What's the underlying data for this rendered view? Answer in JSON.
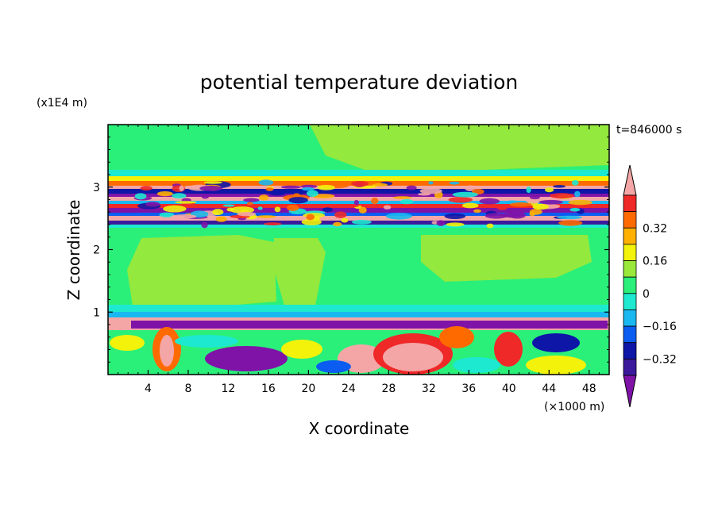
{
  "chart_data": {
    "type": "heatmap",
    "title": "potential temperature deviation",
    "xlabel": "X coordinate",
    "ylabel": "Z coordinate",
    "x_unit": "(×1000 m)",
    "y_unit": "(x1E4 m)",
    "time_label": "t=846000 s",
    "xlim": [
      0,
      50
    ],
    "ylim": [
      0,
      4
    ],
    "x_ticks": [
      "4",
      "8",
      "12",
      "16",
      "20",
      "24",
      "28",
      "32",
      "36",
      "40",
      "44",
      "48"
    ],
    "y_ticks": [
      "1",
      "2",
      "3"
    ],
    "colorbar": {
      "labels": [
        "0.32",
        "0.16",
        "0",
        "−0.16",
        "−0.32"
      ],
      "levels": [
        -0.48,
        -0.4,
        -0.32,
        -0.24,
        -0.16,
        -0.08,
        0,
        0.08,
        0.16,
        0.24,
        0.32,
        0.4
      ],
      "colors": [
        "#7f13a8",
        "#3b1a9c",
        "#0e16a8",
        "#0a5df0",
        "#1ab8f0",
        "#1de9d0",
        "#2af07a",
        "#99e83a",
        "#f2f20a",
        "#ffb000",
        "#ff6a00",
        "#ef2828",
        "#f4a6a6"
      ],
      "extend": "both"
    }
  }
}
